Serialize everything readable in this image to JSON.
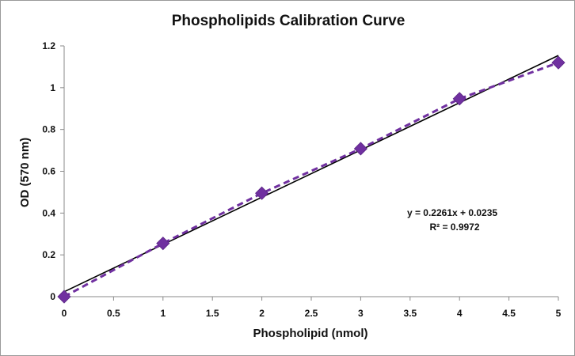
{
  "chart_data": {
    "type": "scatter",
    "title": "Phospholipids Calibration Curve",
    "xlabel": "Phospholipid (nmol)",
    "ylabel": "OD (570 nm)",
    "xlim": [
      0,
      5
    ],
    "ylim": [
      0,
      1.2
    ],
    "x_ticks": [
      "0",
      "0.5",
      "1",
      "1.5",
      "2",
      "2.5",
      "3",
      "3.5",
      "4",
      "4.5",
      "5"
    ],
    "y_ticks": [
      "0",
      "0.2",
      "0.4",
      "0.6",
      "0.8",
      "1",
      "1.2"
    ],
    "grid": false,
    "series": [
      {
        "x": [
          0,
          1,
          2,
          3,
          4,
          5
        ],
        "y": [
          0.0,
          0.255,
          0.495,
          0.708,
          0.947,
          1.12
        ],
        "marker": "diamond",
        "line": "dashed",
        "color": "#7030a0"
      }
    ],
    "trendline": {
      "slope": 0.2261,
      "intercept": 0.0235,
      "color": "#000000",
      "equation": "y = 0.2261x + 0.0235",
      "r_squared": "R² = 0.9972"
    }
  }
}
